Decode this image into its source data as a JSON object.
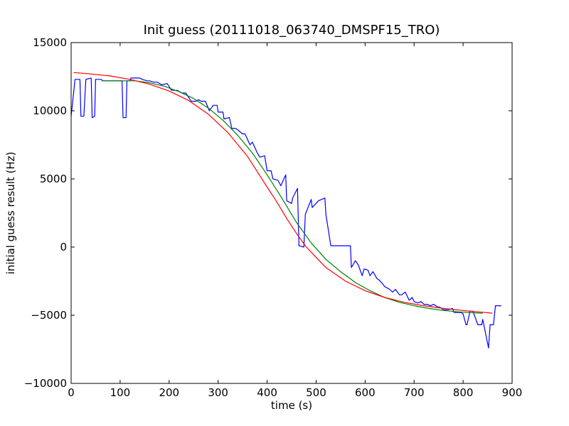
{
  "chart_data": {
    "type": "line",
    "title": "Init guess (20111018_063740_DMSPF15_TRO)",
    "xlabel": "time (s)",
    "ylabel": "initial guess result (Hz)",
    "xlim": [
      0,
      900
    ],
    "ylim": [
      -10000,
      15000
    ],
    "xticks": [
      "0",
      "100",
      "200",
      "300",
      "400",
      "500",
      "600",
      "700",
      "800",
      "900"
    ],
    "yticks": [
      "−10000",
      "−5000",
      "0",
      "5000",
      "10000",
      "15000"
    ],
    "grid": false,
    "legend": "none",
    "series": [
      {
        "color": "#0000ff",
        "x": [
          0,
          8,
          18,
          20,
          26,
          30,
          41,
          43,
          48,
          50,
          62,
          64,
          70,
          72,
          104,
          106,
          112,
          114,
          120,
          122,
          130,
          140,
          145,
          155,
          160,
          168,
          176,
          185,
          196,
          205,
          216,
          226,
          234,
          245,
          254,
          260,
          266,
          274,
          282,
          290,
          298,
          300,
          310,
          312,
          323,
          328,
          336,
          340,
          350,
          355,
          365,
          370,
          380,
          385,
          395,
          400,
          408,
          412,
          422,
          428,
          438,
          440,
          450,
          452,
          462,
          465,
          475,
          478,
          490,
          492,
          505,
          518,
          520,
          530,
          540,
          549,
          552,
          558,
          562,
          570,
          572,
          580,
          586,
          594,
          598,
          606,
          610,
          616,
          624,
          628,
          636,
          640,
          650,
          656,
          662,
          670,
          675,
          682,
          690,
          696,
          700,
          708,
          714,
          720,
          726,
          734,
          740,
          748,
          752,
          760,
          764,
          770,
          778,
          782,
          790,
          796,
          800,
          806,
          808,
          814,
          820,
          830,
          838,
          840,
          852,
          855,
          860,
          862,
          866,
          870,
          874,
          878
        ],
        "y": [
          9600,
          12300,
          12300,
          9600,
          9600,
          12300,
          12400,
          9500,
          9600,
          12300,
          12300,
          12200,
          12200,
          12200,
          12200,
          9500,
          9500,
          12200,
          12200,
          12400,
          12400,
          12400,
          12300,
          12200,
          12200,
          12100,
          12100,
          11900,
          12000,
          11500,
          11500,
          11300,
          11300,
          10700,
          10700,
          10800,
          10700,
          10700,
          10000,
          10400,
          10400,
          9900,
          9900,
          9400,
          9500,
          8700,
          8700,
          8600,
          8300,
          8300,
          7500,
          7700,
          6900,
          6600,
          6700,
          5600,
          5600,
          5000,
          4900,
          4500,
          5300,
          3400,
          3200,
          3600,
          4300,
          100,
          0,
          2400,
          3500,
          2900,
          3400,
          3600,
          2400,
          100,
          100,
          100,
          100,
          100,
          100,
          100,
          -1500,
          -1000,
          -1300,
          -2100,
          -1600,
          -1700,
          -2100,
          -1800,
          -2300,
          -2400,
          -2700,
          -2900,
          -3100,
          -3300,
          -3100,
          -3500,
          -3500,
          -3300,
          -3900,
          -3700,
          -4000,
          -4100,
          -4000,
          -4200,
          -4200,
          -4300,
          -4200,
          -4400,
          -4400,
          -4600,
          -4600,
          -4600,
          -4500,
          -4800,
          -4800,
          -4800,
          -4900,
          -5700,
          -5700,
          -4700,
          -4700,
          -5700,
          -5700,
          -5300,
          -7400,
          -5700,
          -5700,
          -5700,
          -4300,
          -4300,
          -4300,
          -4300
        ],
        "note": ""
      },
      {
        "color": "#008000",
        "x": [
          62,
          100,
          130,
          160,
          190,
          220,
          250,
          280,
          310,
          340,
          370,
          400,
          430,
          460,
          490,
          520,
          550,
          580,
          610,
          640,
          670,
          700,
          730,
          760,
          790,
          820,
          840
        ],
        "y": [
          12200,
          12200,
          12200,
          12050,
          11800,
          11400,
          10900,
          10200,
          9300,
          8200,
          6900,
          5300,
          3600,
          1800,
          300,
          -900,
          -1800,
          -2600,
          -3200,
          -3700,
          -4050,
          -4300,
          -4500,
          -4650,
          -4750,
          -4820,
          -4850
        ]
      },
      {
        "color": "#ff0000",
        "x": [
          5,
          40,
          80,
          120,
          160,
          200,
          240,
          280,
          320,
          360,
          400,
          420,
          440,
          460,
          480,
          500,
          520,
          560,
          600,
          640,
          680,
          720,
          760,
          800,
          840,
          860
        ],
        "y": [
          12800,
          12700,
          12550,
          12300,
          11950,
          11450,
          10750,
          9750,
          8400,
          6650,
          4400,
          3300,
          2100,
          1000,
          0,
          -750,
          -1500,
          -2500,
          -3200,
          -3700,
          -4050,
          -4300,
          -4500,
          -4650,
          -4780,
          -4850
        ]
      }
    ]
  }
}
